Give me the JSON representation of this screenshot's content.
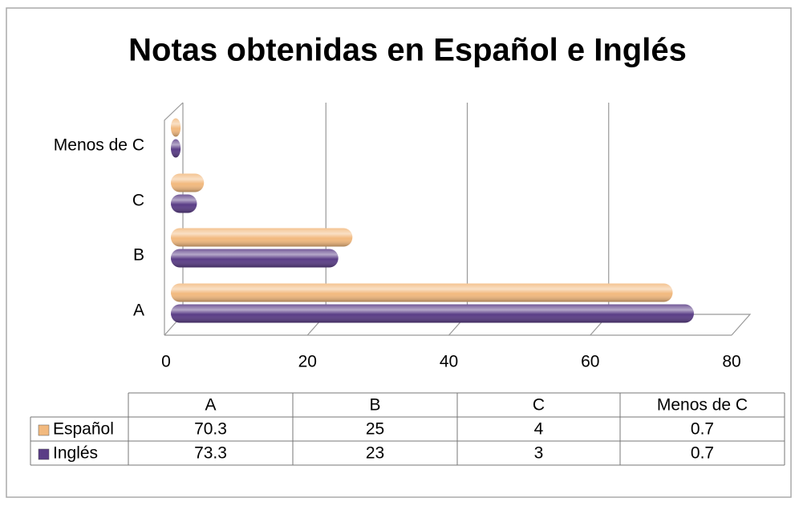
{
  "chart_data": {
    "type": "bar",
    "orientation": "horizontal",
    "title": "Notas obtenidas en Español e Inglés",
    "categories": [
      "A",
      "B",
      "C",
      "Menos de C"
    ],
    "series": [
      {
        "name": "Español",
        "color": "#f2b97e",
        "values": [
          70.3,
          25,
          4,
          0.7
        ]
      },
      {
        "name": "Inglés",
        "color": "#5a3d86",
        "values": [
          73.3,
          23,
          3,
          0.7
        ]
      }
    ],
    "xlim": [
      0,
      80
    ],
    "xticks": [
      0,
      20,
      40,
      60,
      80
    ],
    "grid": true,
    "data_table": true
  }
}
